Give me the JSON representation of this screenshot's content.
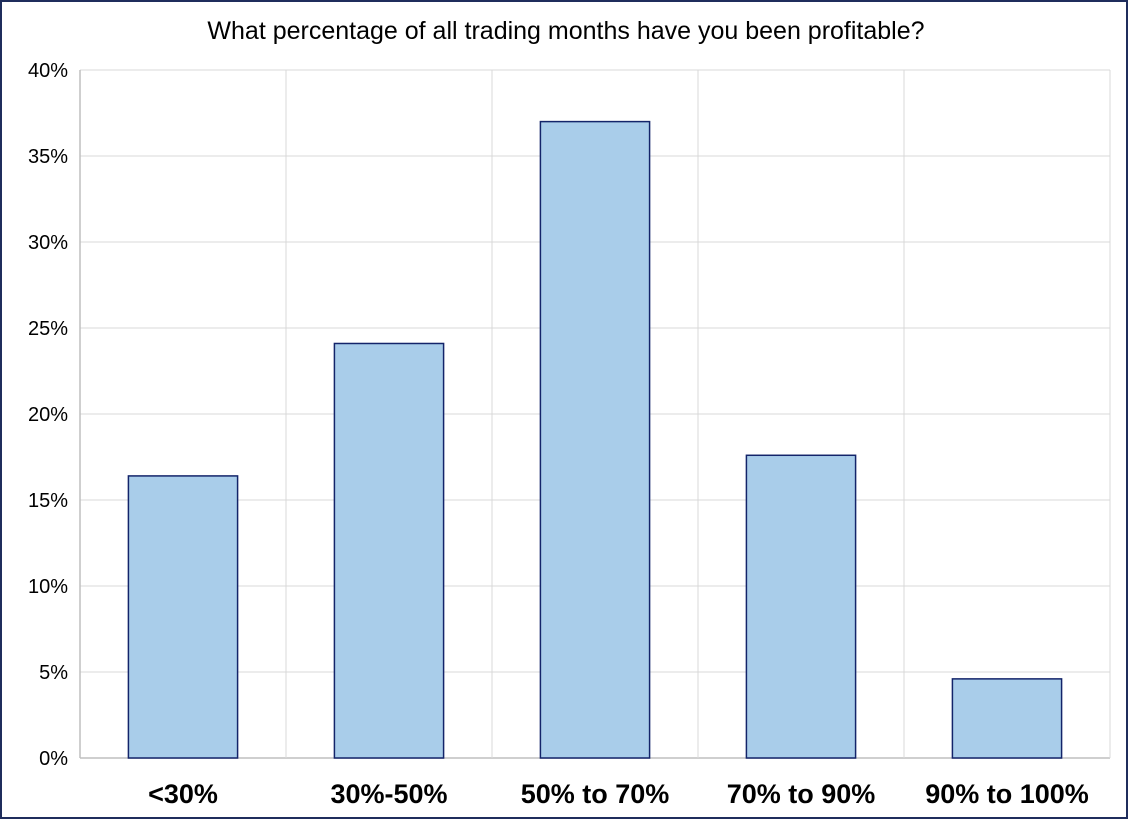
{
  "chart_data": {
    "type": "bar",
    "title": "What percentage of all trading months have you been profitable?",
    "xlabel": "",
    "ylabel": "",
    "categories": [
      "<30%",
      "30%-50%",
      "50% to 70%",
      "70% to 90%",
      "90% to 100%"
    ],
    "values": [
      16.4,
      24.1,
      37.0,
      17.6,
      4.6
    ],
    "ylim": [
      0,
      40
    ],
    "yticks": [
      0,
      5,
      10,
      15,
      20,
      25,
      30,
      35,
      40
    ],
    "ytick_labels": [
      "0%",
      "5%",
      "10%",
      "15%",
      "20%",
      "25%",
      "30%",
      "35%",
      "40%"
    ],
    "grid": "both",
    "legend": "none",
    "colors": {
      "bar_fill": "#a9cdea",
      "bar_edge": "#13246a",
      "frame": "#1f2d5c",
      "grid": "#d9d9d9"
    }
  }
}
